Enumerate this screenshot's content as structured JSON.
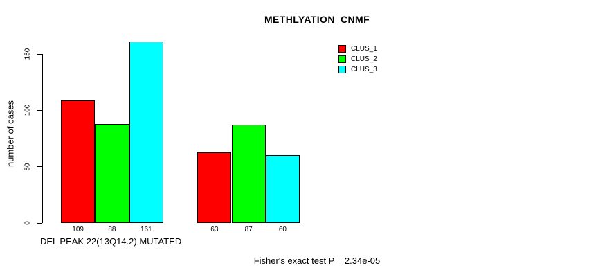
{
  "title": "METHLYATION_CNMF",
  "footer": "Fisher's exact test P = 2.34e-05",
  "chart_data": {
    "type": "bar",
    "title": "METHLYATION_CNMF",
    "ylabel": "number of cases",
    "xlabel": "DEL PEAK 22(13Q14.2) MUTATED",
    "yticks": [
      0,
      50,
      100,
      150
    ],
    "ylim": [
      0,
      161
    ],
    "grid": false,
    "legend_position": "top-right",
    "groups": 2,
    "series": [
      {
        "name": "CLUS_1",
        "color": "#ff0000",
        "values": [
          109,
          63
        ]
      },
      {
        "name": "CLUS_2",
        "color": "#00ff00",
        "values": [
          88,
          87
        ]
      },
      {
        "name": "CLUS_3",
        "color": "#00ffff",
        "values": [
          161,
          60
        ]
      }
    ],
    "bar_value_labels": [
      [
        109,
        88,
        161
      ],
      [
        63,
        87,
        60
      ]
    ],
    "annotation": "Fisher's exact test P = 2.34e-05"
  }
}
